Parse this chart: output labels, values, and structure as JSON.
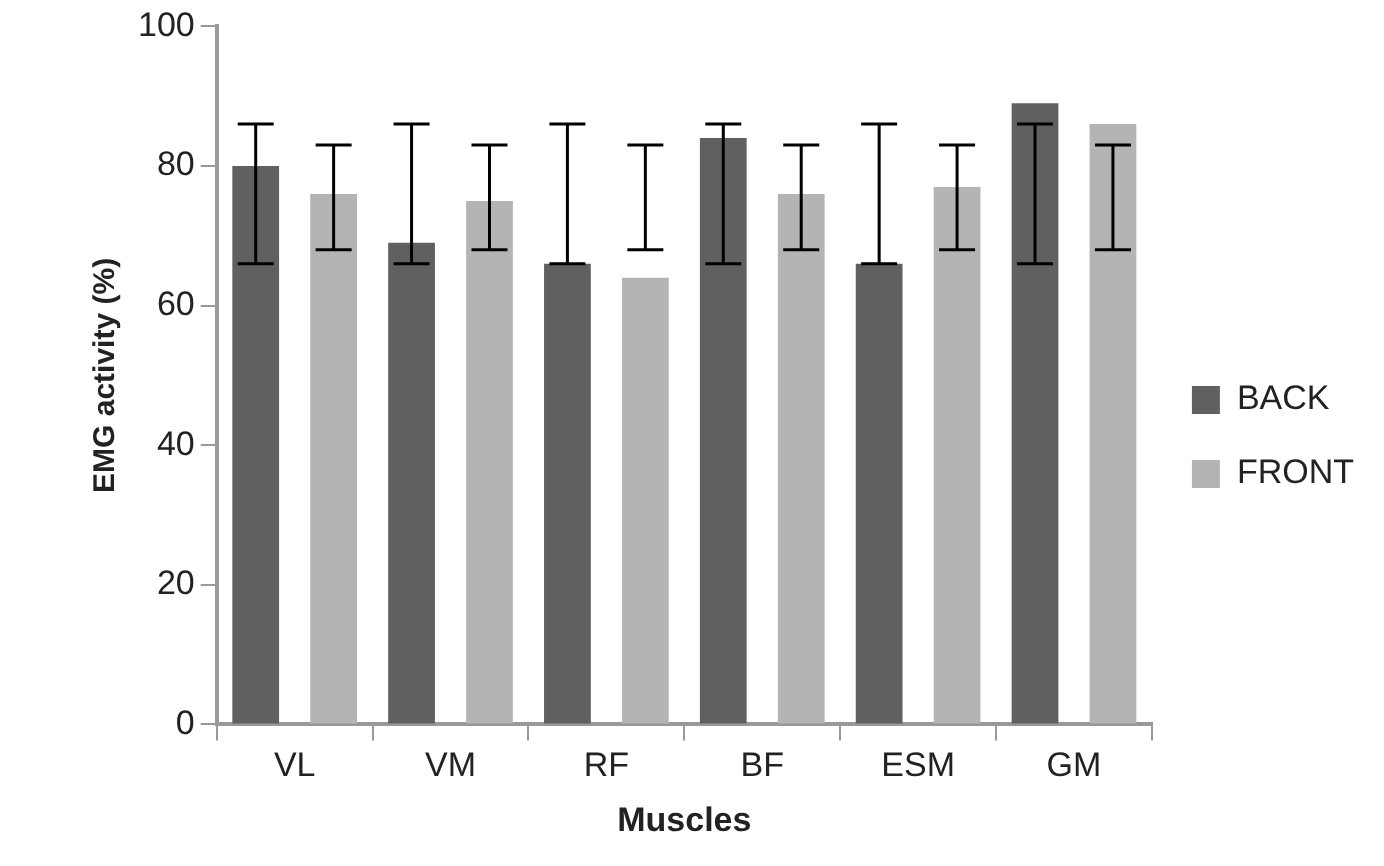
{
  "chart_data": {
    "type": "bar",
    "xlabel": "Muscles",
    "ylabel": "EMG activity (%)",
    "categories": [
      "VL",
      "VM",
      "RF",
      "BF",
      "ESM",
      "GM"
    ],
    "series": [
      {
        "name": "BACK",
        "color": "#606060",
        "values": [
          80,
          69,
          66,
          84,
          66,
          89
        ],
        "errors": [
          [
            66,
            86
          ],
          [
            66,
            86
          ],
          [
            66,
            86
          ],
          [
            66,
            86
          ],
          [
            66,
            86
          ],
          [
            66,
            86
          ]
        ]
      },
      {
        "name": "FRONT",
        "color": "#b4b4b4",
        "values": [
          76,
          75,
          64,
          76,
          77,
          86
        ],
        "errors": [
          [
            68,
            83
          ],
          [
            68,
            83
          ],
          [
            68,
            83
          ],
          [
            68,
            83
          ],
          [
            68,
            83
          ],
          [
            68,
            83
          ]
        ]
      }
    ],
    "ylim": [
      0,
      100
    ],
    "yticks": [
      0,
      20,
      40,
      60,
      80,
      100
    ],
    "grid": false,
    "legend": "right"
  }
}
